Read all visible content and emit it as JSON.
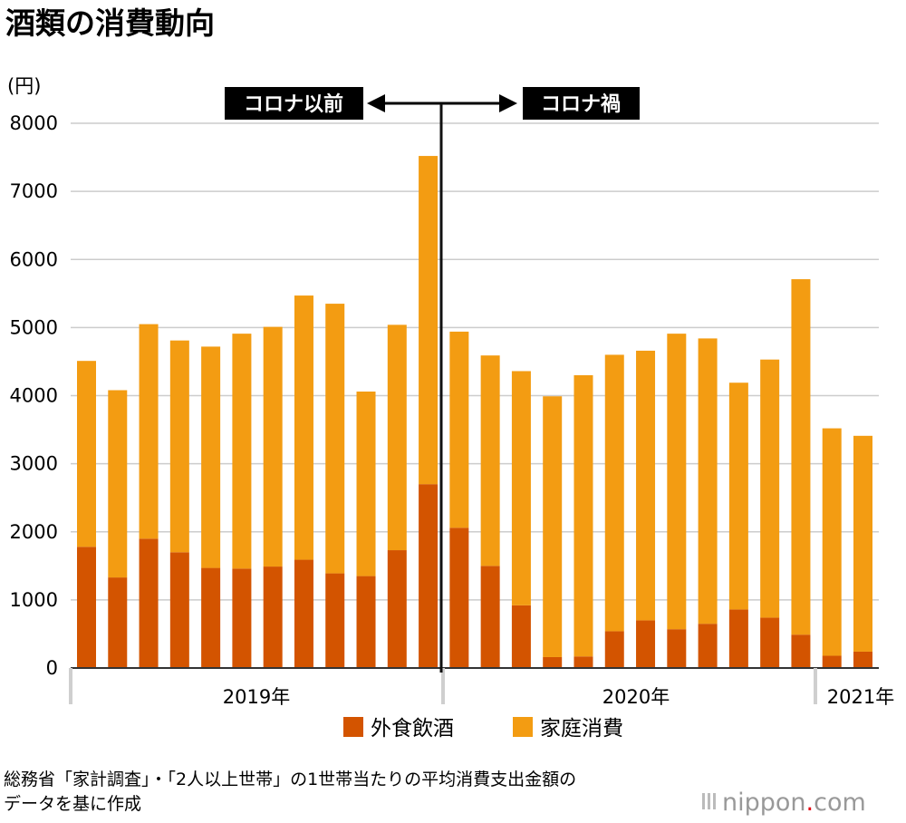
{
  "title": "酒類の消費動向",
  "unit_label": "(円)",
  "annotations": {
    "before": "コロナ以前",
    "after": "コロナ禍"
  },
  "year_labels": [
    "2019年",
    "2020年",
    "2021年"
  ],
  "legend": {
    "dining_out": "外食飲酒",
    "home": "家庭消費"
  },
  "source_lines": [
    "総務省「家計調査」・「2人以上世帯」の1世帯当たりの平均消費支出金額の",
    "データを基に作成"
  ],
  "brand": {
    "name": "nippon",
    "dot": ".",
    "suffix": "com"
  },
  "colors": {
    "dining_out": "#d35400",
    "home": "#f39c12",
    "grid": "#cccccc",
    "divider": "#111111"
  },
  "chart_data": {
    "type": "bar",
    "stacked": true,
    "title": "酒類の消費動向",
    "ylabel": "(円)",
    "ylim": [
      0,
      8000
    ],
    "yticks": [
      0,
      1000,
      2000,
      3000,
      4000,
      5000,
      6000,
      7000,
      8000
    ],
    "categories": [
      "2019-01",
      "2019-02",
      "2019-03",
      "2019-04",
      "2019-05",
      "2019-06",
      "2019-07",
      "2019-08",
      "2019-09",
      "2019-10",
      "2019-11",
      "2019-12",
      "2020-01",
      "2020-02",
      "2020-03",
      "2020-04",
      "2020-05",
      "2020-06",
      "2020-07",
      "2020-08",
      "2020-09",
      "2020-10",
      "2020-11",
      "2020-12",
      "2021-01",
      "2021-02"
    ],
    "series": [
      {
        "name": "外食飲酒",
        "values": [
          1780,
          1330,
          1900,
          1700,
          1470,
          1460,
          1490,
          1590,
          1390,
          1350,
          1730,
          2700,
          2060,
          1500,
          920,
          160,
          170,
          540,
          700,
          570,
          650,
          860,
          740,
          490,
          180,
          240
        ]
      },
      {
        "name": "家庭消費",
        "values": [
          2730,
          2750,
          3150,
          3110,
          3250,
          3450,
          3520,
          3880,
          3960,
          2710,
          3310,
          4820,
          2880,
          3090,
          3440,
          3830,
          4130,
          4060,
          3960,
          4340,
          4190,
          3330,
          3790,
          5220,
          3340,
          3170
        ]
      }
    ],
    "groups": [
      {
        "label": "2019年",
        "count": 12
      },
      {
        "label": "2020年",
        "count": 12
      },
      {
        "label": "2021年",
        "count": 2
      }
    ],
    "divider_after_index": 11,
    "grid": true,
    "legend_position": "bottom"
  }
}
